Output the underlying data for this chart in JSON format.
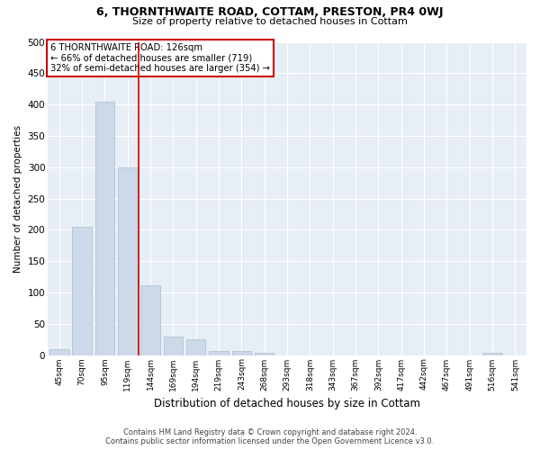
{
  "title1": "6, THORNTHWAITE ROAD, COTTAM, PRESTON, PR4 0WJ",
  "title2": "Size of property relative to detached houses in Cottam",
  "xlabel": "Distribution of detached houses by size in Cottam",
  "ylabel": "Number of detached properties",
  "footer1": "Contains HM Land Registry data © Crown copyright and database right 2024.",
  "footer2": "Contains public sector information licensed under the Open Government Licence v3.0.",
  "categories": [
    "45sqm",
    "70sqm",
    "95sqm",
    "119sqm",
    "144sqm",
    "169sqm",
    "194sqm",
    "219sqm",
    "243sqm",
    "268sqm",
    "293sqm",
    "318sqm",
    "343sqm",
    "367sqm",
    "392sqm",
    "417sqm",
    "442sqm",
    "467sqm",
    "491sqm",
    "516sqm",
    "541sqm"
  ],
  "values": [
    9,
    205,
    405,
    300,
    112,
    30,
    25,
    7,
    6,
    4,
    0,
    0,
    0,
    0,
    0,
    0,
    0,
    0,
    0,
    4,
    0
  ],
  "bar_color": "#ccd9e8",
  "bar_edge_color": "#aabcce",
  "vline_x": 3.5,
  "vline_color": "#cc0000",
  "annotation_line1": "6 THORNTHWAITE ROAD: 126sqm",
  "annotation_line2": "← 66% of detached houses are smaller (719)",
  "annotation_line3": "32% of semi-detached houses are larger (354) →",
  "annotation_box_color": "#cc0000",
  "ylim": [
    0,
    500
  ],
  "yticks": [
    0,
    50,
    100,
    150,
    200,
    250,
    300,
    350,
    400,
    450,
    500
  ],
  "bar_color_highlight": "#ccd9e8",
  "plot_bg_color": "#e8eef5",
  "grid_color": "#ffffff"
}
